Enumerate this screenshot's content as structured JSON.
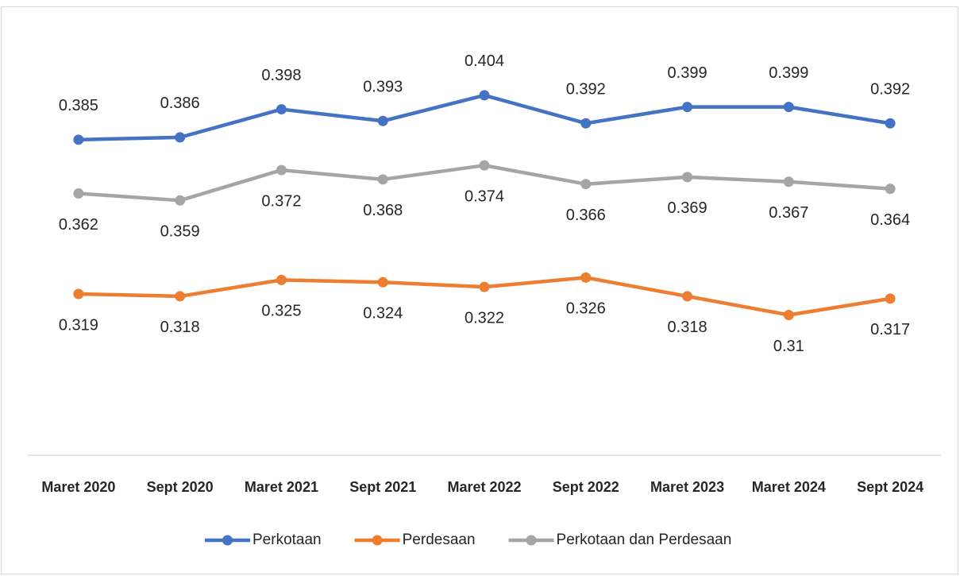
{
  "chart_data": {
    "type": "line",
    "categories": [
      "Maret 2020",
      "Sept 2020",
      "Maret 2021",
      "Sept 2021",
      "Maret 2022",
      "Sept 2022",
      "Maret 2023",
      "Maret 2024",
      "Sept 2024"
    ],
    "series": [
      {
        "name": "Perkotaan",
        "color": "#4472c4",
        "values": [
          0.385,
          0.386,
          0.398,
          0.393,
          0.404,
          0.392,
          0.399,
          0.399,
          0.392
        ]
      },
      {
        "name": "Perdesaan",
        "color": "#ed7d31",
        "values": [
          0.319,
          0.318,
          0.325,
          0.324,
          0.322,
          0.326,
          0.318,
          0.31,
          0.317
        ]
      },
      {
        "name": "Perkotaan dan Perdesaan",
        "color": "#a5a5a5",
        "values": [
          0.362,
          0.359,
          0.372,
          0.368,
          0.374,
          0.366,
          0.369,
          0.367,
          0.364
        ]
      }
    ],
    "ylim": [
      0.25,
      0.44
    ],
    "grid": false,
    "legend": "bottom"
  }
}
